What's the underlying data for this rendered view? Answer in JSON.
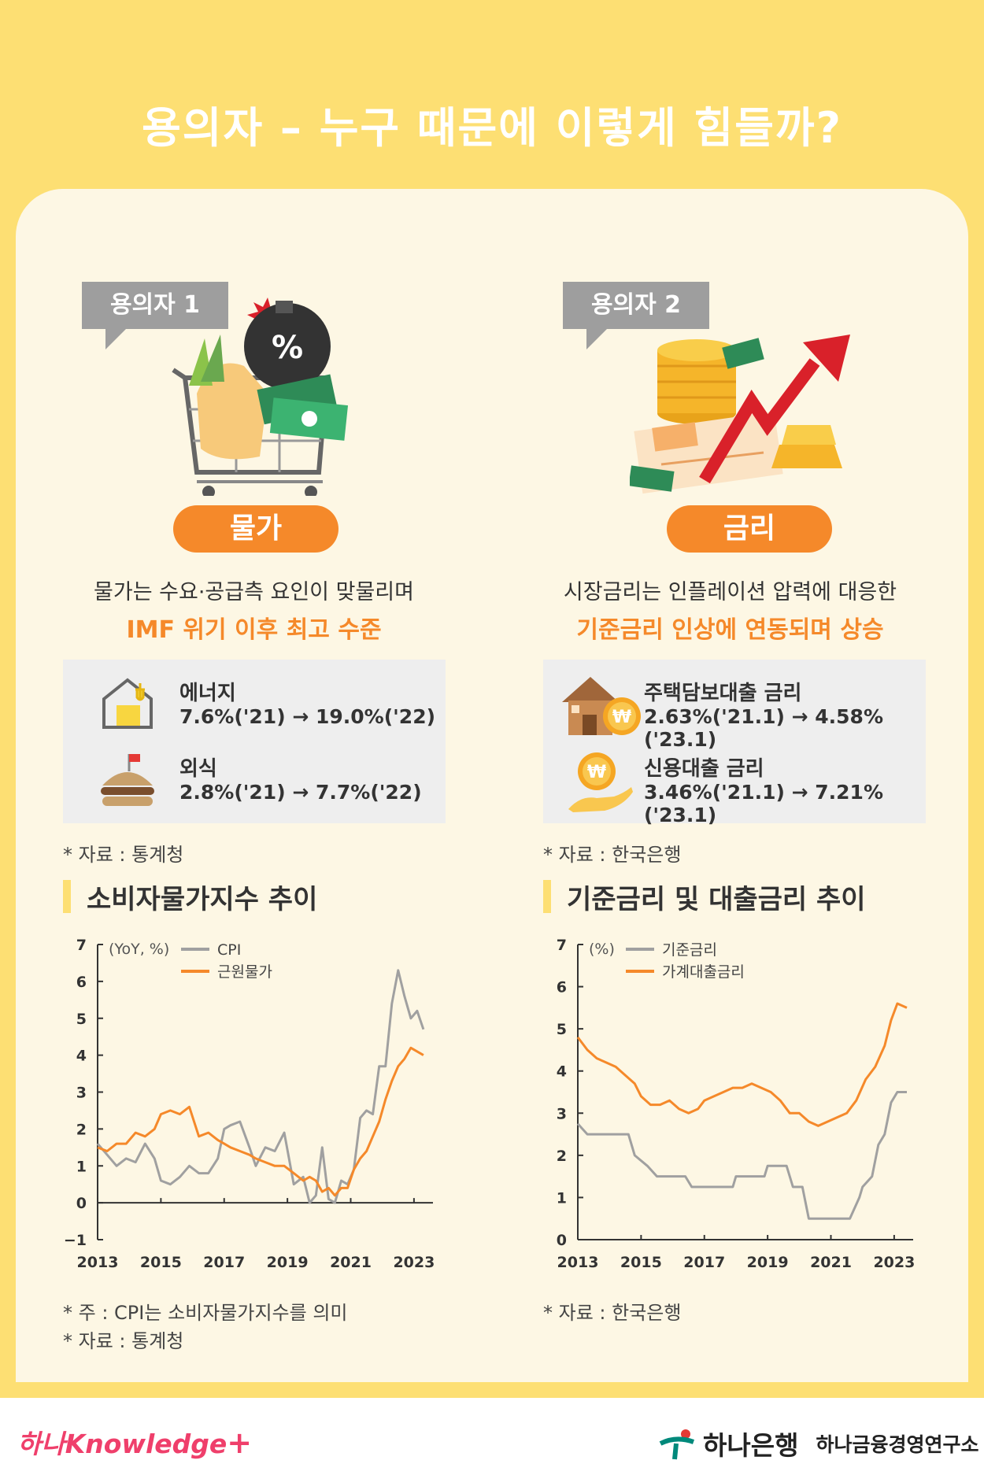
{
  "title": "용의자 – 누구 때문에 이렇게 힘들까?",
  "colors": {
    "yellow": "#FDDF73",
    "orange": "#F5892A",
    "gray": "#9e9e9e",
    "cpi_gray": "#A0A0A0"
  },
  "left": {
    "tag": "용의자 1",
    "pill": "물가",
    "desc1": "물가는 수요·공급측 요인이 맞물리며",
    "desc2": "IMF 위기 이후 최고 수준",
    "stats": [
      {
        "label": "에너지",
        "value": "7.6%('21) → 19.0%('22)",
        "icon": "house-energy-icon"
      },
      {
        "label": "외식",
        "value": "2.8%('21) → 7.7%('22)",
        "icon": "burger-icon"
      }
    ],
    "source": "* 자료 : 통계청",
    "section_title": "소비자물가지수 추이",
    "notes": [
      "* 주 : CPI는 소비자물가지수를 의미",
      "* 자료 : 통계청"
    ]
  },
  "right": {
    "tag": "용의자 2",
    "pill": "금리",
    "desc1": "시장금리는 인플레이션 압력에 대응한",
    "desc2": "기준금리 인상에 연동되며 상승",
    "stats": [
      {
        "label": "주택담보대출 금리",
        "value": "2.63%('21.1) → 4.58%('23.1)",
        "icon": "house-won-icon"
      },
      {
        "label": "신용대출 금리",
        "value": "3.46%('21.1) → 7.21%('23.1)",
        "icon": "hand-coin-icon"
      }
    ],
    "source": "* 자료 : 한국은행",
    "section_title": "기준금리 및 대출금리 추이",
    "notes": [
      "* 자료 : 한국은행"
    ]
  },
  "chart_data": [
    {
      "type": "line",
      "ylabel": "(YoY, %)",
      "ylim": [
        -1,
        7
      ],
      "yticks": [
        -1,
        0,
        1,
        2,
        3,
        4,
        5,
        6,
        7
      ],
      "xlim": [
        2013,
        2023.6
      ],
      "xticks": [
        "2013",
        "2015",
        "2017",
        "2019",
        "2021",
        "2023"
      ],
      "legend": "top",
      "series": [
        {
          "name": "CPI",
          "color": "#A0A0A0",
          "x": [
            2013,
            2013.3,
            2013.6,
            2013.9,
            2014.2,
            2014.5,
            2014.8,
            2015.0,
            2015.3,
            2015.6,
            2015.9,
            2016.2,
            2016.5,
            2016.8,
            2017.0,
            2017.2,
            2017.5,
            2017.8,
            2018.0,
            2018.3,
            2018.6,
            2018.9,
            2019.2,
            2019.5,
            2019.7,
            2019.9,
            2020.1,
            2020.3,
            2020.5,
            2020.7,
            2020.9,
            2021.1,
            2021.3,
            2021.5,
            2021.7,
            2021.9,
            2022.1,
            2022.3,
            2022.5,
            2022.7,
            2022.9,
            2023.1,
            2023.3
          ],
          "values": [
            1.6,
            1.3,
            1.0,
            1.2,
            1.1,
            1.6,
            1.2,
            0.6,
            0.5,
            0.7,
            1.0,
            0.8,
            0.8,
            1.2,
            2.0,
            2.1,
            2.2,
            1.5,
            1.0,
            1.5,
            1.4,
            1.9,
            0.5,
            0.7,
            0.0,
            0.2,
            1.5,
            0.1,
            0.0,
            0.6,
            0.5,
            0.9,
            2.3,
            2.5,
            2.4,
            3.7,
            3.7,
            5.4,
            6.3,
            5.6,
            5.0,
            5.2,
            4.7
          ]
        },
        {
          "name": "근원물가",
          "color": "#F5892A",
          "x": [
            2013,
            2013.3,
            2013.6,
            2013.9,
            2014.2,
            2014.5,
            2014.8,
            2015.0,
            2015.3,
            2015.6,
            2015.9,
            2016.2,
            2016.5,
            2016.8,
            2017.0,
            2017.2,
            2017.5,
            2017.8,
            2018.0,
            2018.3,
            2018.6,
            2018.9,
            2019.2,
            2019.5,
            2019.7,
            2019.9,
            2020.1,
            2020.3,
            2020.5,
            2020.7,
            2020.9,
            2021.1,
            2021.3,
            2021.5,
            2021.7,
            2021.9,
            2022.1,
            2022.3,
            2022.5,
            2022.7,
            2022.9,
            2023.1,
            2023.3
          ],
          "values": [
            1.5,
            1.4,
            1.6,
            1.6,
            1.9,
            1.8,
            2.0,
            2.4,
            2.5,
            2.4,
            2.6,
            1.8,
            1.9,
            1.7,
            1.6,
            1.5,
            1.4,
            1.3,
            1.2,
            1.1,
            1.0,
            1.0,
            0.8,
            0.6,
            0.7,
            0.6,
            0.3,
            0.4,
            0.2,
            0.4,
            0.4,
            0.9,
            1.2,
            1.4,
            1.8,
            2.2,
            2.8,
            3.3,
            3.7,
            3.9,
            4.2,
            4.1,
            4.0
          ]
        }
      ]
    },
    {
      "type": "line",
      "ylabel": "(%)",
      "ylim": [
        0,
        7
      ],
      "yticks": [
        0,
        1,
        2,
        3,
        4,
        5,
        6,
        7
      ],
      "xlim": [
        2013,
        2023.6
      ],
      "xticks": [
        "2013",
        "2015",
        "2017",
        "2019",
        "2021",
        "2023"
      ],
      "legend": "top",
      "series": [
        {
          "name": "기준금리",
          "color": "#A0A0A0",
          "x": [
            2013,
            2013.3,
            2014.6,
            2014.8,
            2015.2,
            2015.5,
            2016.4,
            2016.6,
            2017.9,
            2018.0,
            2018.9,
            2019.0,
            2019.6,
            2019.8,
            2020.1,
            2020.3,
            2021.6,
            2021.9,
            2022.0,
            2022.3,
            2022.5,
            2022.7,
            2022.9,
            2023.1,
            2023.4
          ],
          "values": [
            2.75,
            2.5,
            2.5,
            2.0,
            1.75,
            1.5,
            1.5,
            1.25,
            1.25,
            1.5,
            1.5,
            1.75,
            1.75,
            1.25,
            1.25,
            0.5,
            0.5,
            1.0,
            1.25,
            1.5,
            2.25,
            2.5,
            3.25,
            3.5,
            3.5
          ]
        },
        {
          "name": "가계대출금리",
          "color": "#F5892A",
          "x": [
            2013,
            2013.3,
            2013.6,
            2013.9,
            2014.2,
            2014.5,
            2014.8,
            2015.0,
            2015.3,
            2015.6,
            2015.9,
            2016.2,
            2016.5,
            2016.8,
            2017.0,
            2017.3,
            2017.6,
            2017.9,
            2018.2,
            2018.5,
            2018.8,
            2019.1,
            2019.4,
            2019.7,
            2020.0,
            2020.3,
            2020.6,
            2020.9,
            2021.2,
            2021.5,
            2021.8,
            2022.1,
            2022.4,
            2022.7,
            2022.9,
            2023.1,
            2023.4
          ],
          "values": [
            4.8,
            4.5,
            4.3,
            4.2,
            4.1,
            3.9,
            3.7,
            3.4,
            3.2,
            3.2,
            3.3,
            3.1,
            3.0,
            3.1,
            3.3,
            3.4,
            3.5,
            3.6,
            3.6,
            3.7,
            3.6,
            3.5,
            3.3,
            3.0,
            3.0,
            2.8,
            2.7,
            2.8,
            2.9,
            3.0,
            3.3,
            3.8,
            4.1,
            4.6,
            5.2,
            5.6,
            5.5
          ]
        }
      ]
    }
  ],
  "footer": {
    "left_brand": "하나Knowledge",
    "plus": "+",
    "bank": "하나은행",
    "institute": "하나금융경영연구소"
  }
}
